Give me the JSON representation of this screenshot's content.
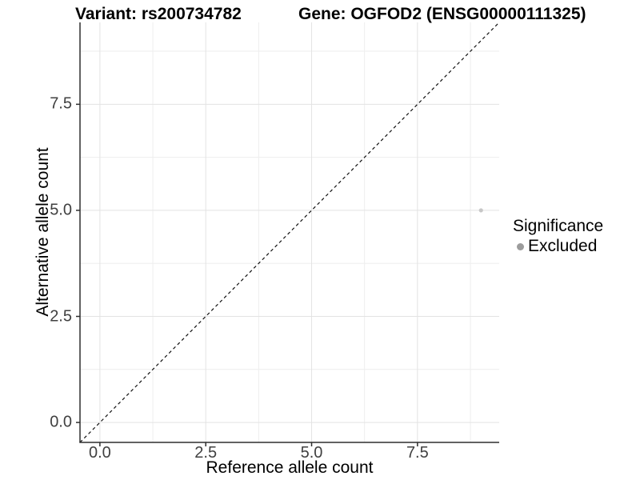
{
  "title": {
    "variant": "Variant: rs200734782",
    "gene": "Gene: OGFOD2 (ENSG00000111325)"
  },
  "axes": {
    "x": {
      "label": "Reference allele count",
      "ticks": [
        "0.0",
        "2.5",
        "5.0",
        "7.5"
      ]
    },
    "y": {
      "label": "Alternative allele count",
      "ticks": [
        "0.0",
        "2.5",
        "5.0",
        "7.5"
      ]
    }
  },
  "legend": {
    "title": "Significance",
    "items": [
      {
        "label": "Excluded",
        "color": "#9c9c9c"
      }
    ]
  },
  "colors": {
    "grid_major": "#e3e3e3",
    "grid_minor": "#eeeeee",
    "axis_line": "#2e2e2e",
    "identity_line": "#111111",
    "point": "#c7c7c7",
    "background": "#ffffff"
  },
  "chart_data": {
    "type": "scatter",
    "title": "Variant: rs200734782    Gene: OGFOD2 (ENSG00000111325)",
    "xlabel": "Reference allele count",
    "ylabel": "Alternative allele count",
    "x_ticks": [
      0.0,
      2.5,
      5.0,
      7.5
    ],
    "y_ticks": [
      0.0,
      2.5,
      5.0,
      7.5
    ],
    "xlim": [
      -0.47,
      9.43
    ],
    "ylim": [
      -0.47,
      9.43
    ],
    "grid": "major and minor gridlines on white background",
    "legend_position": "right",
    "series": [
      {
        "name": "Excluded",
        "marker": "circle",
        "color": "#c7c7c7",
        "points": [
          {
            "x": 9,
            "y": 5
          }
        ]
      }
    ],
    "identity_line": {
      "slope": 1,
      "intercept": 0,
      "style": "dashed",
      "color": "#111111"
    }
  }
}
